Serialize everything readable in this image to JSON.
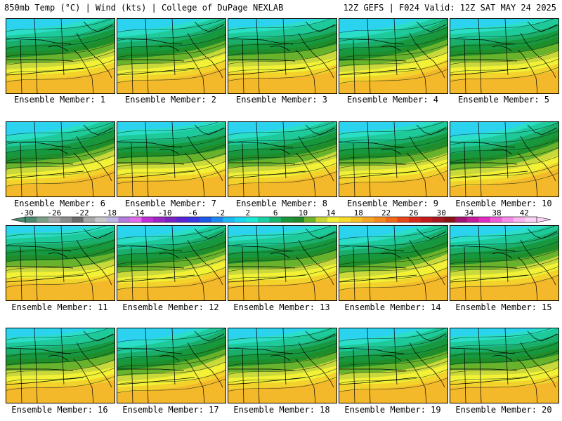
{
  "header": {
    "title_left": "850mb Temp (°C) | Wind (kts) | College of DuPage NEXLAB",
    "title_right": "12Z GEFS | F024 Valid: 12Z SAT MAY 24 2025"
  },
  "members": [
    {
      "label": "Ensemble Member: 1",
      "tilt": 0
    },
    {
      "label": "Ensemble Member: 2",
      "tilt": 2
    },
    {
      "label": "Ensemble Member: 3",
      "tilt": -3
    },
    {
      "label": "Ensemble Member: 4",
      "tilt": 4
    },
    {
      "label": "Ensemble Member: 5",
      "tilt": -2
    },
    {
      "label": "Ensemble Member: 6",
      "tilt": 3
    },
    {
      "label": "Ensemble Member: 7",
      "tilt": -4
    },
    {
      "label": "Ensemble Member: 8",
      "tilt": 1
    },
    {
      "label": "Ensemble Member: 9",
      "tilt": -1
    },
    {
      "label": "Ensemble Member: 10",
      "tilt": 5
    },
    {
      "label": "Ensemble Member: 11",
      "tilt": -5
    },
    {
      "label": "Ensemble Member: 12",
      "tilt": 2
    },
    {
      "label": "Ensemble Member: 13",
      "tilt": -2
    },
    {
      "label": "Ensemble Member: 14",
      "tilt": 3
    },
    {
      "label": "Ensemble Member: 15",
      "tilt": 0
    },
    {
      "label": "Ensemble Member: 16",
      "tilt": -3
    },
    {
      "label": "Ensemble Member: 17",
      "tilt": 4
    },
    {
      "label": "Ensemble Member: 18",
      "tilt": -1
    },
    {
      "label": "Ensemble Member: 19",
      "tilt": 1
    },
    {
      "label": "Ensemble Member: 20",
      "tilt": -4
    }
  ],
  "colorbar": {
    "tick_labels": [
      "-30",
      "-26",
      "-22",
      "-18",
      "-14",
      "-10",
      "-6",
      "-2",
      "2",
      "6",
      "10",
      "14",
      "18",
      "22",
      "26",
      "30",
      "34",
      "38",
      "42"
    ],
    "colors": [
      "#4a8a6e",
      "#7e9e88",
      "#a7a7a7",
      "#8c8c8c",
      "#6c6c6c",
      "#a9a9a9",
      "#c7c7c7",
      "#c0b6e6",
      "#b27bdc",
      "#e36bee",
      "#c02fd8",
      "#9b26c4",
      "#7a22c2",
      "#5a24d2",
      "#3a36e4",
      "#1d5ae8",
      "#1c8bf0",
      "#1fb7f5",
      "#19d8f2",
      "#1ee8d6",
      "#1cd0a6",
      "#18b56e",
      "#1a963c",
      "#1f8a2a",
      "#6db52a",
      "#c8d634",
      "#f4f234",
      "#f7dc2c",
      "#f8c324",
      "#f7a624",
      "#f58a1e",
      "#f06a1a",
      "#e6481a",
      "#d82a1c",
      "#c21c1e",
      "#a81820",
      "#8a1418",
      "#a31472",
      "#c41c9c",
      "#e02cc0",
      "#f05cd8",
      "#f78ce8",
      "#f9b4f0",
      "#fbd2f6"
    ],
    "legend": "850mb Temp (°C)"
  }
}
